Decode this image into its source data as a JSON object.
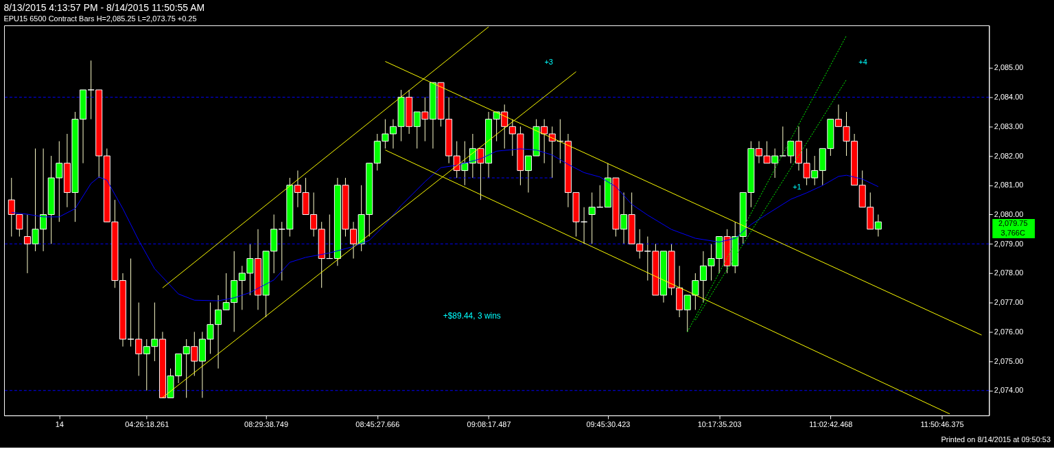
{
  "chart_data": {
    "type": "candlestick",
    "title": "8/13/2015 4:13:57 PM - 8/14/2015 11:50:55 AM",
    "subtitle": "EPU15  6500 Contract Bars  H=2,085.25  L=2,073.75  +0.25",
    "categories": [
      null,
      null,
      null,
      null,
      null,
      null,
      "14",
      null,
      null,
      null,
      null,
      null,
      null,
      null,
      null,
      null,
      null,
      "04:26:18.261",
      null,
      null,
      null,
      null,
      null,
      null,
      null,
      null,
      null,
      null,
      null,
      null,
      null,
      null,
      "08:29:38.749",
      null,
      null,
      null,
      null,
      null,
      null,
      null,
      null,
      null,
      null,
      null,
      null,
      null,
      "08:45:27.666",
      null,
      null,
      null,
      null,
      null,
      null,
      null,
      null,
      null,
      null,
      null,
      null,
      null,
      "09:08:17.487",
      null,
      null,
      null,
      null,
      null,
      null,
      null,
      null,
      null,
      null,
      null,
      null,
      null,
      null,
      "09:45:30.423",
      null,
      null,
      null,
      null,
      null,
      null,
      null,
      null,
      null,
      null,
      null,
      null,
      null,
      "10:17:35.203",
      null,
      null,
      null,
      null,
      null,
      null,
      null,
      null,
      null,
      null,
      null,
      null,
      null,
      "11:02:42.468",
      null,
      null,
      null,
      null,
      null,
      null,
      null,
      null,
      null,
      null,
      null,
      null,
      null,
      "11:50:46.375",
      null,
      null,
      null,
      null,
      null
    ],
    "colors": [
      "#ff0000",
      "#ff0000",
      "#ff0000",
      "#00ff00",
      "#00ff00",
      "#00ff00",
      "#00ff00",
      "#ff0000",
      "#00ff00",
      "#00ff00",
      "#ffffff",
      "#ff0000",
      "#ff0000",
      "#ff0000",
      "#ff0000",
      "#ffffff",
      "#ff0000",
      "#00ff00",
      "#00ff00",
      "#ff0000",
      "#00ff00",
      "#00ff00",
      "#00ff00",
      "#ff0000",
      "#00ff00",
      "#00ff00",
      "#00ff00",
      "#00ff00",
      "#00ff00",
      "#00ff00",
      "#00ff00",
      "#ff0000",
      "#00ff00",
      "#00ff00",
      "#ffffff",
      "#00ff00",
      "#ff0000",
      "#ff0000",
      "#ff0000",
      "#ff0000",
      "#ffffff",
      "#00ff00",
      "#ff0000",
      "#ff0000",
      "#00ff00",
      "#00ff00",
      "#00ff00",
      "#00ff00",
      "#00ff00",
      "#00ff00",
      "#ff0000",
      "#00ff00",
      "#ff0000",
      "#00ff00",
      "#ff0000",
      "#ff0000",
      "#ff0000",
      "#00ff00",
      "#00ff00",
      "#ff0000",
      "#00ff00",
      "#00ff00",
      "#ff0000",
      "#ff0000",
      "#ff0000",
      "#00ff00",
      "#00ff00",
      "#ff0000",
      "#ff0000",
      "#ffffff",
      "#ff0000",
      "#ff0000",
      "#ffffff",
      "#00ff00",
      "#ffffff",
      "#00ff00",
      "#ff0000",
      "#00ff00",
      "#ff0000",
      "#ff0000",
      "#ffffff",
      "#ff0000",
      "#00ff00",
      "#ff0000",
      "#ff0000",
      "#00ff00",
      "#00ff00",
      "#00ff00",
      "#00ff00",
      "#00ff00",
      "#ff0000",
      "#00ff00",
      "#00ff00",
      "#00ff00",
      "#ff0000",
      "#ff0000",
      "#00ff00",
      "#ffffff",
      "#00ff00",
      "#ff0000",
      "#ff0000",
      "#00ff00",
      "#00ff00",
      "#00ff00",
      "#ff0000",
      "#ff0000",
      "#ff0000",
      "#ff0000",
      "#ff0000",
      "#00ff00",
      null,
      null,
      null,
      null,
      null,
      null,
      null,
      null,
      null,
      null,
      null,
      null,
      null
    ],
    "ohlc": [
      [
        2080.5,
        2081.25,
        2079.25,
        2080
      ],
      [
        2080,
        2080,
        2079.25,
        2079.5
      ],
      [
        2079.25,
        2080,
        2078,
        2079
      ],
      [
        2079,
        2082.25,
        2078.75,
        2079.5
      ],
      [
        2079.5,
        2082.25,
        2078.75,
        2080
      ],
      [
        2080,
        2082,
        2079,
        2081.25
      ],
      [
        2081.25,
        2082.5,
        2079.75,
        2081.75
      ],
      [
        2081.75,
        2082.75,
        2080.25,
        2080.75
      ],
      [
        2080.75,
        2083.5,
        2079.75,
        2083.25
      ],
      [
        2083.25,
        2084.25,
        2081.75,
        2084.25
      ],
      [
        2084.25,
        2085.25,
        2083.25,
        2084.25
      ],
      [
        2084.25,
        2084.25,
        2081.25,
        2082
      ],
      [
        2082,
        2082.25,
        2079.75,
        2079.75
      ],
      [
        2079.75,
        2080.5,
        2077.5,
        2077.75
      ],
      [
        2077.75,
        2078,
        2075.5,
        2075.75
      ],
      [
        2075.75,
        2078.5,
        2075.5,
        2075.75
      ],
      [
        2075.75,
        2077,
        2074.5,
        2075.25
      ],
      [
        2075.25,
        2075.75,
        2074,
        2075.5
      ],
      [
        2075.5,
        2077,
        2075,
        2075.75
      ],
      [
        2075.75,
        2076,
        2073.75,
        2073.75
      ],
      [
        2073.75,
        2074.75,
        2073.75,
        2074.5
      ],
      [
        2074.5,
        2075.25,
        2074.25,
        2075.25
      ],
      [
        2075.25,
        2075.75,
        2073.75,
        2075.5
      ],
      [
        2075.5,
        2076,
        2074.5,
        2075
      ],
      [
        2075,
        2076,
        2073.75,
        2075.75
      ],
      [
        2075.75,
        2077,
        2075.25,
        2076.25
      ],
      [
        2076.25,
        2077.25,
        2074.75,
        2076.75
      ],
      [
        2076.75,
        2078,
        2076.75,
        2077
      ],
      [
        2077,
        2078.75,
        2076,
        2077.75
      ],
      [
        2077.75,
        2078.25,
        2076.75,
        2078
      ],
      [
        2078,
        2079,
        2077.25,
        2078.5
      ],
      [
        2078.5,
        2079.5,
        2076.75,
        2077.25
      ],
      [
        2077.25,
        2078.75,
        2076.5,
        2078.75
      ],
      [
        2078.75,
        2080,
        2078,
        2079.5
      ],
      [
        2079.5,
        2079.75,
        2077.75,
        2079.5
      ],
      [
        2079.5,
        2081.25,
        2079.25,
        2081
      ],
      [
        2081,
        2081.5,
        2080.25,
        2080.75
      ],
      [
        2080.75,
        2081.25,
        2080,
        2080
      ],
      [
        2080,
        2080.75,
        2079.25,
        2079.5
      ],
      [
        2079.5,
        2079.75,
        2077.5,
        2078.5
      ],
      [
        2078.5,
        2080,
        2078.5,
        2078.5
      ],
      [
        2078.5,
        2081.25,
        2078.25,
        2081
      ],
      [
        2081,
        2081.25,
        2079.25,
        2079.5
      ],
      [
        2079.5,
        2079.75,
        2078.5,
        2079
      ],
      [
        2079,
        2081,
        2078.75,
        2080
      ],
      [
        2080,
        2081.75,
        2079.25,
        2081.75
      ],
      [
        2081.75,
        2082.75,
        2081.5,
        2082.5
      ],
      [
        2082.5,
        2083.25,
        2082.25,
        2082.75
      ],
      [
        2082.75,
        2083.25,
        2082.25,
        2083
      ],
      [
        2083,
        2084.25,
        2082.5,
        2084
      ],
      [
        2084,
        2084.25,
        2082.75,
        2083
      ],
      [
        2083,
        2083.5,
        2082.25,
        2083.5
      ],
      [
        2083.5,
        2084,
        2082.5,
        2083.25
      ],
      [
        2083.25,
        2084.5,
        2082.25,
        2084.5
      ],
      [
        2084.5,
        2084.5,
        2083,
        2083.25
      ],
      [
        2083.25,
        2084,
        2081.75,
        2082
      ],
      [
        2082,
        2082.5,
        2081.25,
        2081.5
      ],
      [
        2081.5,
        2082.5,
        2081,
        2081.75
      ],
      [
        2081.75,
        2082.75,
        2081.25,
        2082.25
      ],
      [
        2082.25,
        2082.25,
        2080.5,
        2081.75
      ],
      [
        2081.75,
        2083.5,
        2081.25,
        2083.25
      ],
      [
        2083.25,
        2083.5,
        2082.5,
        2083.5
      ],
      [
        2083.5,
        2083.75,
        2082.25,
        2083
      ],
      [
        2083,
        2083.25,
        2082,
        2082.75
      ],
      [
        2082.75,
        2083,
        2081,
        2081.5
      ],
      [
        2081.5,
        2082,
        2080.75,
        2082
      ],
      [
        2082,
        2083.25,
        2082,
        2083
      ],
      [
        2083,
        2083.25,
        2081.75,
        2082.75
      ],
      [
        2082.75,
        2083,
        2081.25,
        2082.5
      ],
      [
        2082.5,
        2083.25,
        2081.75,
        2082.5
      ],
      [
        2082.5,
        2082.75,
        2080.25,
        2080.75
      ],
      [
        2080.75,
        2080.75,
        2079.25,
        2079.75
      ],
      [
        2079.75,
        2080.25,
        2079,
        2079.75
      ],
      [
        2080,
        2080.75,
        2079,
        2080.25
      ],
      [
        2080.25,
        2081,
        2080.25,
        2080.25
      ],
      [
        2080.25,
        2081.75,
        2080.25,
        2081.25
      ],
      [
        2081.25,
        2081.25,
        2079.25,
        2079.5
      ],
      [
        2079.5,
        2080.75,
        2079,
        2080
      ],
      [
        2080,
        2080.75,
        2079,
        2079
      ],
      [
        2079,
        2079.5,
        2078.5,
        2078.75
      ],
      [
        2078.75,
        2079.25,
        2077.75,
        2078.75
      ],
      [
        2078.75,
        2079,
        2077.25,
        2077.25
      ],
      [
        2077.25,
        2078.75,
        2077,
        2078.75
      ],
      [
        2078.75,
        2079,
        2077.25,
        2077.5
      ],
      [
        2077.5,
        2078.25,
        2076.5,
        2076.75
      ],
      [
        2076.75,
        2077.25,
        2076,
        2077.25
      ],
      [
        2077.25,
        2078,
        2076.75,
        2077.75
      ],
      [
        2077.75,
        2078.75,
        2077,
        2078.25
      ],
      [
        2078.25,
        2079,
        2077.75,
        2078.5
      ],
      [
        2078.5,
        2079.25,
        2078,
        2079.25
      ],
      [
        2079.25,
        2079.5,
        2078,
        2078.25
      ],
      [
        2078.25,
        2079.75,
        2078,
        2079.25
      ],
      [
        2079.25,
        2080.75,
        2079,
        2080.75
      ],
      [
        2080.75,
        2082.5,
        2080.25,
        2082.25
      ],
      [
        2082.25,
        2082.5,
        2081.75,
        2082
      ],
      [
        2082,
        2082.5,
        2081.75,
        2081.75
      ],
      [
        2081.75,
        2082.25,
        2081.25,
        2082
      ],
      [
        2082,
        2083,
        2082,
        2082
      ],
      [
        2082,
        2082.5,
        2081.75,
        2082.5
      ],
      [
        2082.5,
        2083,
        2081.5,
        2081.75
      ],
      [
        2081.75,
        2082.25,
        2081,
        2081.25
      ],
      [
        2081.25,
        2082,
        2081,
        2081.5
      ],
      [
        2081.5,
        2082.25,
        2081,
        2082.25
      ],
      [
        2082.25,
        2083.25,
        2082,
        2083.25
      ],
      [
        2083.25,
        2083.75,
        2083,
        2083
      ],
      [
        2083,
        2083.5,
        2082,
        2082.5
      ],
      [
        2082.5,
        2082.75,
        2081,
        2081
      ],
      [
        2081,
        2081.5,
        2080.25,
        2080.25
      ],
      [
        2080.25,
        2080.75,
        2079.5,
        2079.5
      ],
      [
        2079.5,
        2080,
        2079.25,
        2079.75
      ],
      null,
      null,
      null,
      null,
      null,
      null,
      null,
      null,
      null,
      null,
      null,
      null,
      null
    ],
    "series": [
      {
        "type": "line",
        "color": "#0000ff",
        "values": [
          2080.07,
          null,
          2080.01,
          null,
          2079.92,
          null,
          2079.92,
          null,
          2080.2,
          null,
          2081.06,
          2081.28,
          2081.17,
          null,
          2080.2,
          null,
          2079.12,
          null,
          2078.15,
          null,
          null,
          2077.29,
          null,
          2077.08,
          null,
          null,
          2077.06,
          null,
          2077.16,
          null,
          2077.34,
          null,
          null,
          2077.77,
          null,
          2078.37,
          null,
          2078.54,
          null,
          null,
          2078.69,
          null,
          null,
          2078.91,
          null,
          2079.12,
          null,
          2079.66,
          null,
          2080.31,
          null,
          null,
          2081.12,
          null,
          2081.6,
          null,
          2081.68,
          null,
          null,
          2081.9,
          null,
          2082.16,
          null,
          null,
          2082.24,
          null,
          2082.2,
          null,
          2082.03,
          null,
          2081.71,
          null,
          2081.43,
          null,
          2081.28,
          null,
          2080.95,
          null,
          2080.35,
          null,
          2079.98,
          null,
          null,
          2079.49,
          null,
          null,
          2079.19,
          null,
          null,
          2079.06,
          null,
          2079.19,
          null,
          2079.66,
          null,
          2080.01,
          null,
          null,
          2080.52,
          null,
          2080.74,
          null,
          2080.99,
          null,
          2081.3,
          2081.34,
          null,
          2081.21,
          null,
          2080.95,
          null,
          null,
          null,
          null,
          null,
          null,
          null,
          null,
          null,
          null,
          null,
          null,
          null
        ]
      },
      {
        "type": "line",
        "color": "#ffff00",
        "values": [
          null,
          null,
          null,
          null,
          null,
          null,
          null,
          null,
          null,
          null,
          null,
          null,
          null,
          null,
          null,
          null,
          null,
          null,
          null,
          2077.5,
          null,
          null,
          null,
          null,
          null,
          null,
          null,
          null,
          null,
          null,
          null,
          null,
          null,
          null,
          null,
          null,
          null,
          null,
          null,
          null,
          null,
          null,
          null,
          null,
          null,
          null,
          null,
          null,
          null,
          null,
          null,
          null,
          null,
          null,
          null,
          null,
          null,
          null,
          null,
          null,
          2086.4,
          null,
          null,
          null,
          null,
          null,
          null,
          null,
          null,
          null,
          null,
          null,
          null,
          null,
          null,
          null,
          null,
          null,
          null,
          null,
          null,
          null,
          null,
          null,
          null,
          null,
          null,
          null,
          null,
          null,
          null,
          null,
          null,
          null,
          null,
          null,
          null,
          null,
          null,
          null,
          null,
          null,
          null,
          null,
          null,
          null,
          null,
          null,
          null,
          null,
          null,
          null,
          null,
          null,
          null,
          null,
          null,
          null,
          null,
          null,
          null,
          null,
          null
        ]
      },
      {
        "type": "line",
        "color": "#ffff00",
        "values": [
          null,
          null,
          null,
          null,
          null,
          null,
          null,
          null,
          null,
          null,
          null,
          null,
          null,
          null,
          null,
          null,
          null,
          null,
          null,
          2073.76,
          null,
          null,
          null,
          null,
          null,
          null,
          null,
          null,
          null,
          null,
          null,
          null,
          null,
          null,
          null,
          null,
          null,
          null,
          null,
          null,
          null,
          null,
          null,
          null,
          null,
          null,
          null,
          null,
          null,
          null,
          null,
          null,
          null,
          null,
          null,
          null,
          null,
          null,
          null,
          null,
          null,
          null,
          null,
          null,
          null,
          null,
          null,
          null,
          null,
          null,
          null,
          2084.87,
          null,
          null,
          null,
          null,
          null,
          null,
          null,
          null,
          null,
          null,
          null,
          null,
          null,
          null,
          null,
          null,
          null,
          null,
          null,
          null,
          null,
          null,
          null,
          null,
          null,
          null,
          null,
          null,
          null,
          null,
          null,
          null,
          null,
          null,
          null,
          null,
          null,
          null,
          null,
          null,
          null,
          null,
          null,
          null,
          null,
          null,
          null,
          null,
          null,
          null,
          null
        ]
      },
      {
        "type": "line",
        "color": "#ffff00",
        "values": [
          null,
          null,
          null,
          null,
          null,
          null,
          null,
          null,
          null,
          null,
          null,
          null,
          null,
          null,
          null,
          null,
          null,
          null,
          null,
          null,
          null,
          null,
          null,
          null,
          null,
          null,
          null,
          null,
          null,
          null,
          null,
          null,
          null,
          null,
          null,
          null,
          null,
          null,
          null,
          null,
          null,
          null,
          null,
          null,
          null,
          null,
          null,
          2085.22,
          null,
          null,
          null,
          null,
          null,
          null,
          null,
          null,
          null,
          null,
          null,
          null,
          null,
          null,
          null,
          null,
          null,
          null,
          null,
          null,
          null,
          null,
          null,
          null,
          null,
          null,
          null,
          null,
          null,
          null,
          null,
          null,
          null,
          null,
          null,
          null,
          null,
          null,
          null,
          null,
          null,
          null,
          null,
          null,
          null,
          null,
          null,
          null,
          null,
          null,
          null,
          null,
          null,
          null,
          null,
          null,
          null,
          null,
          null,
          null,
          null,
          null,
          null,
          null,
          null,
          null,
          null,
          null,
          null,
          null,
          null,
          null,
          null,
          null,
          2075.89
        ]
      },
      {
        "type": "line",
        "color": "#ffff00",
        "values": [
          null,
          null,
          null,
          null,
          null,
          null,
          null,
          null,
          null,
          null,
          null,
          null,
          null,
          null,
          null,
          null,
          null,
          null,
          null,
          null,
          null,
          null,
          null,
          null,
          null,
          null,
          null,
          null,
          null,
          null,
          null,
          null,
          null,
          null,
          null,
          null,
          null,
          null,
          null,
          null,
          null,
          null,
          null,
          null,
          null,
          null,
          null,
          2082.2,
          null,
          null,
          null,
          null,
          null,
          null,
          null,
          null,
          null,
          null,
          null,
          null,
          null,
          null,
          null,
          null,
          null,
          null,
          null,
          null,
          null,
          null,
          null,
          null,
          null,
          null,
          null,
          null,
          null,
          null,
          null,
          null,
          null,
          null,
          null,
          null,
          null,
          null,
          null,
          null,
          null,
          null,
          null,
          null,
          null,
          null,
          null,
          null,
          null,
          null,
          null,
          null,
          null,
          null,
          null,
          null,
          null,
          null,
          null,
          null,
          null,
          null,
          null,
          null,
          null,
          null,
          null,
          null,
          null,
          null,
          2073.2,
          null,
          null,
          null,
          null
        ]
      },
      {
        "type": "line",
        "color": "#00ff00",
        "line_style": "dotted",
        "values": [
          null,
          null,
          null,
          null,
          null,
          null,
          null,
          null,
          null,
          null,
          null,
          null,
          null,
          null,
          null,
          null,
          null,
          null,
          null,
          null,
          null,
          null,
          null,
          null,
          null,
          null,
          null,
          null,
          null,
          null,
          null,
          null,
          null,
          null,
          null,
          null,
          null,
          null,
          null,
          null,
          null,
          null,
          null,
          null,
          null,
          null,
          null,
          null,
          null,
          null,
          null,
          null,
          null,
          null,
          null,
          null,
          null,
          null,
          null,
          null,
          null,
          null,
          null,
          null,
          null,
          null,
          null,
          null,
          null,
          null,
          null,
          null,
          null,
          null,
          null,
          null,
          null,
          null,
          null,
          null,
          null,
          null,
          null,
          null,
          null,
          2076.0,
          null,
          null,
          null,
          null,
          null,
          null,
          null,
          null,
          null,
          null,
          null,
          null,
          null,
          null,
          null,
          null,
          null,
          null,
          null,
          2086.1,
          null,
          null,
          null,
          null,
          null,
          null,
          null,
          null,
          null,
          null,
          null,
          null,
          null,
          null,
          null,
          null,
          null
        ]
      },
      {
        "type": "line",
        "color": "#00ff00",
        "line_style": "dotted",
        "values": [
          null,
          null,
          null,
          null,
          null,
          null,
          null,
          null,
          null,
          null,
          null,
          null,
          null,
          null,
          null,
          null,
          null,
          null,
          null,
          null,
          null,
          null,
          null,
          null,
          null,
          null,
          null,
          null,
          null,
          null,
          null,
          null,
          null,
          null,
          null,
          null,
          null,
          null,
          null,
          null,
          null,
          null,
          null,
          null,
          null,
          null,
          null,
          null,
          null,
          null,
          null,
          null,
          null,
          null,
          null,
          null,
          null,
          null,
          null,
          null,
          null,
          null,
          null,
          null,
          null,
          null,
          null,
          null,
          null,
          null,
          null,
          null,
          null,
          null,
          null,
          null,
          null,
          null,
          null,
          null,
          null,
          null,
          null,
          null,
          null,
          null,
          2076.4,
          null,
          null,
          null,
          null,
          null,
          null,
          null,
          null,
          null,
          null,
          null,
          null,
          null,
          null,
          null,
          null,
          null,
          null,
          2084.6,
          null,
          null,
          null,
          null,
          null,
          null,
          null,
          null,
          null,
          null,
          null,
          null,
          null,
          null,
          null,
          null,
          null
        ]
      },
      {
        "type": "line",
        "color": "#0000ff",
        "line_style": "dashed",
        "values": [
          null,
          null,
          null,
          null,
          null,
          null,
          null,
          null,
          null,
          null,
          null,
          null,
          null,
          null,
          null,
          null,
          null,
          null,
          null,
          null,
          null,
          null,
          null,
          null,
          null,
          null,
          null,
          null,
          null,
          null,
          null,
          null,
          null,
          null,
          null,
          null,
          null,
          null,
          null,
          null,
          null,
          null,
          null,
          null,
          null,
          null,
          null,
          null,
          null,
          null,
          null,
          null,
          null,
          null,
          null,
          2081.25,
          null,
          null,
          null,
          null,
          null,
          null,
          null,
          null,
          null,
          null,
          null,
          null,
          2081.25,
          null,
          null,
          null,
          null,
          null,
          null,
          null,
          null,
          null,
          null,
          null,
          null,
          null,
          null,
          null,
          null,
          null,
          null,
          null,
          null,
          null,
          null,
          null,
          null,
          null,
          null,
          null,
          null,
          null,
          null,
          null,
          null,
          null,
          null,
          null,
          null,
          null,
          null,
          null,
          null,
          null,
          null,
          null,
          null,
          null,
          null,
          null,
          null,
          null,
          null,
          null,
          null,
          null,
          null
        ]
      }
    ],
    "ref_lines": [
      {
        "axis": "y",
        "value": 2084,
        "color": "#0000ff",
        "line_style": "dashed"
      },
      {
        "axis": "y",
        "value": 2079,
        "color": "#0000ff",
        "line_style": "dashed"
      },
      {
        "axis": "y",
        "value": 2074,
        "color": "#0000ff",
        "line_style": "dashed"
      }
    ],
    "ylim": [
      2073.15,
      2086.45
    ],
    "yticks": [
      {
        "value": 2074,
        "label": "2,074.00"
      },
      {
        "value": 2075,
        "label": "2,075.00"
      },
      {
        "value": 2076,
        "label": "2,076.00"
      },
      {
        "value": 2077,
        "label": "2,077.00"
      },
      {
        "value": 2078,
        "label": "2,078.00"
      },
      {
        "value": 2079,
        "label": "2,079.00"
      },
      {
        "value": 2080,
        "label": "2,080.00"
      },
      {
        "value": 2081,
        "label": "2,081.00"
      },
      {
        "value": 2082,
        "label": "2,082.00"
      },
      {
        "value": 2083,
        "label": "2,083.00"
      },
      {
        "value": 2084,
        "label": "2,084.00"
      },
      {
        "value": 2085,
        "label": "2,085.00"
      }
    ],
    "annotations": [
      "+3",
      "+1",
      "+4",
      "+$89.44, 3 wins",
      "2,079.75",
      "3,766C",
      "Printed on 8/14/2015 at 09:50:53"
    ],
    "grid": false
  }
}
